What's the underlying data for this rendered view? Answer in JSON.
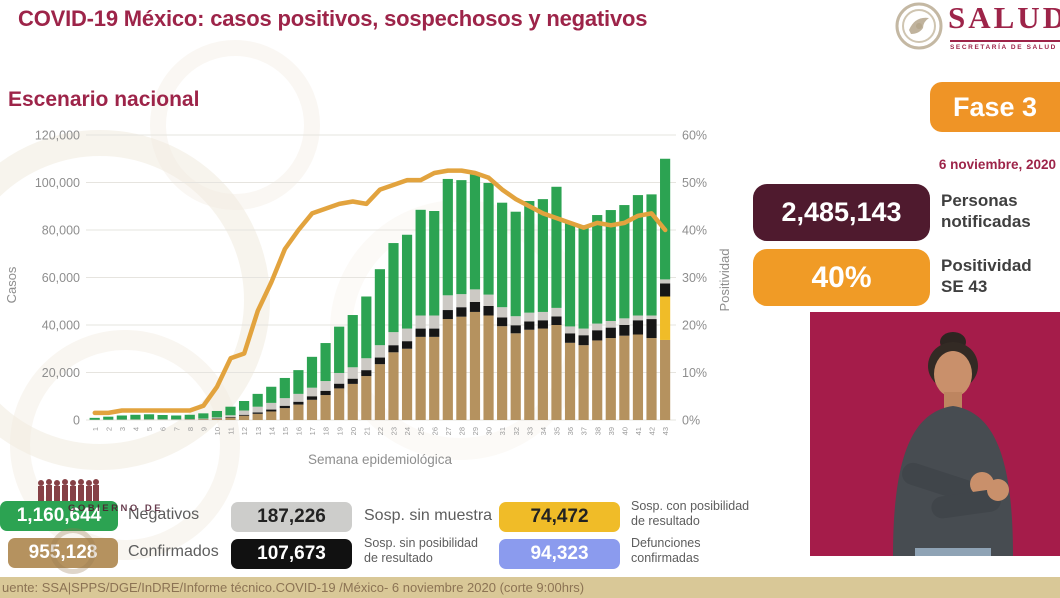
{
  "header": {
    "title": "COVID-19 México: casos positivos, sospechosos y negativos",
    "subtitle": "Escenario nacional"
  },
  "logo": {
    "name": "SALUD",
    "subtitle": "SECRETARÍA DE SALUD"
  },
  "right_panel": {
    "phase_badge": "Fase 3",
    "date": "6 noviembre, 2020",
    "notified": {
      "value": "2,485,143",
      "label": "Personas\nnotificadas"
    },
    "positivity": {
      "value": "40%",
      "label": "Positividad\nSE 43"
    }
  },
  "legend": {
    "items": [
      {
        "value": "1,160,644",
        "label": "Negativos",
        "color": "#2ca352",
        "text_color": "#ffffff"
      },
      {
        "value": "955,128",
        "label": "Confirmados",
        "color": "#b5925f",
        "text_color": "#ffffff"
      },
      {
        "value": "187,226",
        "label": "Sosp. sin muestra",
        "color": "#cdcdcb",
        "text_color": "#222222"
      },
      {
        "value": "107,673",
        "label": "Sosp. sin posibilidad\nde resultado",
        "color": "#111111",
        "text_color": "#ffffff"
      },
      {
        "value": "74,472",
        "label": "Sosp. con posibilidad\nde resultado",
        "color": "#f0bc28",
        "text_color": "#222222"
      },
      {
        "value": "94,323",
        "label": "Defunciones\nconfirmadas",
        "color": "#8b9bee",
        "text_color": "#ffffff"
      }
    ]
  },
  "watermark": {
    "text": "GOBIERNO DE"
  },
  "footer": {
    "source": "uente: SSA|SPPS/DGE/InDRE/Informe técnico.COVID-19 /México- 6 noviembre 2020 (corte 9:00hrs)"
  },
  "chart_data": {
    "type": "bar",
    "stacked": true,
    "title": "Escenario nacional",
    "xlabel": "Semana epidemiológica",
    "ylabel_left": "Casos",
    "ylabel_right": "Positividad",
    "grid": true,
    "categories": [
      1,
      2,
      3,
      4,
      5,
      6,
      7,
      8,
      9,
      10,
      11,
      12,
      13,
      14,
      15,
      16,
      17,
      18,
      19,
      20,
      21,
      22,
      23,
      24,
      25,
      26,
      27,
      28,
      29,
      30,
      31,
      32,
      33,
      34,
      35,
      36,
      37,
      38,
      39,
      40,
      41,
      42,
      43
    ],
    "left_axis": {
      "max": 120000,
      "ticks": [
        "0",
        "20,000",
        "40,000",
        "60,000",
        "80,000",
        "100,000",
        "120,000"
      ]
    },
    "right_axis": {
      "max": 60,
      "ticks": [
        "0%",
        "10%",
        "20%",
        "30%",
        "40%",
        "50%",
        "60%"
      ]
    },
    "series": [
      {
        "name": "Confirmados",
        "color": "#b5925f",
        "values": [
          20,
          40,
          60,
          80,
          100,
          100,
          100,
          150,
          250,
          500,
          1000,
          1800,
          2600,
          3600,
          5000,
          6500,
          8500,
          10500,
          13300,
          15200,
          18500,
          23500,
          28500,
          30000,
          35000,
          35000,
          42500,
          43500,
          45500,
          44000,
          39500,
          36500,
          38000,
          38500,
          40000,
          32500,
          31500,
          33500,
          34500,
          35500,
          36000,
          34500,
          33700
        ]
      },
      {
        "name": "Sosp. con posibilidad de resultado",
        "color": "#f0bc28",
        "values": [
          0,
          0,
          0,
          0,
          0,
          0,
          0,
          0,
          0,
          0,
          0,
          0,
          0,
          0,
          0,
          0,
          0,
          0,
          0,
          0,
          0,
          0,
          0,
          0,
          0,
          0,
          0,
          0,
          0,
          0,
          0,
          0,
          0,
          0,
          0,
          0,
          0,
          0,
          0,
          0,
          0,
          0,
          18300
        ]
      },
      {
        "name": "Sosp. sin posibilidad de resultado",
        "color": "#161616",
        "values": [
          0,
          0,
          20,
          20,
          30,
          30,
          30,
          50,
          80,
          150,
          250,
          400,
          600,
          800,
          1000,
          1200,
          1500,
          1800,
          2000,
          2200,
          2500,
          2800,
          3000,
          3200,
          3500,
          3500,
          3800,
          4000,
          4200,
          4000,
          3700,
          3400,
          3500,
          3500,
          3600,
          4000,
          4200,
          4300,
          4400,
          4500,
          6000,
          8000,
          5500
        ]
      },
      {
        "name": "Sosp. sin muestra",
        "color": "#ccc9c4",
        "values": [
          80,
          100,
          120,
          150,
          170,
          170,
          170,
          200,
          270,
          450,
          750,
          1800,
          2400,
          2800,
          3200,
          3300,
          3600,
          4100,
          4500,
          4800,
          5000,
          5200,
          5500,
          5300,
          5500,
          5500,
          6200,
          5500,
          5300,
          4800,
          4300,
          3800,
          3700,
          3500,
          3600,
          2900,
          2800,
          2800,
          2800,
          2800,
          2000,
          1500,
          1700
        ]
      },
      {
        "name": "Negativos",
        "color": "#2ca352",
        "values": [
          800,
          1260,
          1700,
          1950,
          2100,
          1800,
          1600,
          1800,
          2200,
          2700,
          3600,
          4000,
          5400,
          6800,
          8500,
          10000,
          13000,
          16000,
          19500,
          22000,
          26000,
          32000,
          37500,
          39500,
          44500,
          44000,
          49000,
          48000,
          48500,
          47000,
          44000,
          44000,
          47000,
          47500,
          51000,
          43600,
          43500,
          45700,
          46700,
          47700,
          50700,
          51000,
          50800
        ]
      }
    ],
    "line": {
      "name": "Positividad",
      "color": "#e2a33e",
      "axis": "right",
      "values": [
        1.5,
        1.5,
        2,
        2,
        2,
        2,
        2,
        2,
        3,
        7,
        13,
        14,
        23,
        29,
        36,
        40,
        43.5,
        44.5,
        45.5,
        46,
        45.5,
        48.5,
        49.5,
        50.5,
        50.5,
        52,
        52.5,
        52.5,
        52,
        51,
        48.5,
        46.5,
        45,
        43.5,
        42.5,
        41.5,
        40.5,
        41.5,
        41,
        41.5,
        43,
        43.5,
        40
      ]
    }
  }
}
